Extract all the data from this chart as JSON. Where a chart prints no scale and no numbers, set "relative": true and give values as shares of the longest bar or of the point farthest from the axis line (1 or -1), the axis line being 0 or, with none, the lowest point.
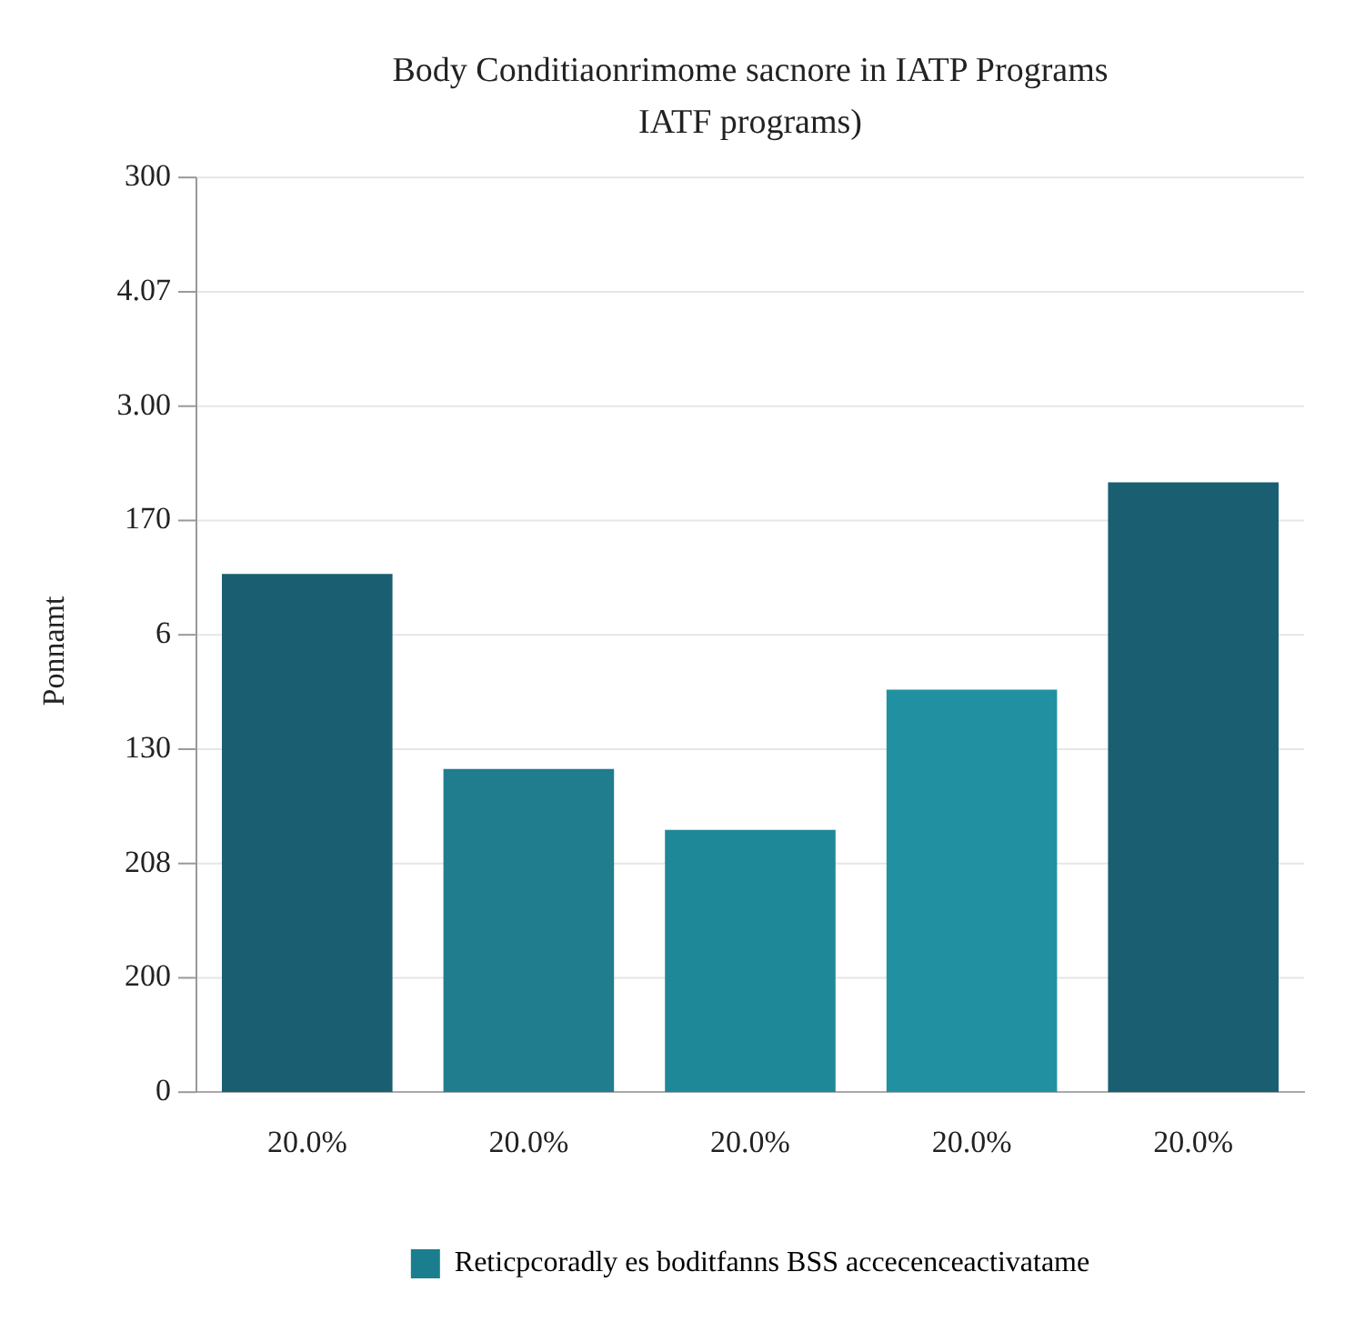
{
  "chart_data": {
    "type": "bar",
    "title": "Body Conditiaonrimome sacnore in IATP Programs",
    "subtitle": "IATF programs)",
    "ylabel": "Ponnamt",
    "categories": [
      "20.0%",
      "20.0%",
      "20.0%",
      "20.0%",
      "20.0%"
    ],
    "series": [
      {
        "name": "Reticpcoradly es boditfanns BSS accecenceactivatame",
        "color": "#1b7e8e",
        "colors": [
          "#1a5e72",
          "#1f7d8d",
          "#1f8898",
          "#2191a1",
          "#1a5e72"
        ],
        "values": [
          0.85,
          0.53,
          0.43,
          0.66,
          1
        ]
      }
    ],
    "relative": true,
    "annotations": [
      "300",
      "4.07",
      "3.00",
      "170",
      "6",
      "130",
      "208",
      "200",
      "0"
    ],
    "grid": "y",
    "legend": "bottom"
  }
}
